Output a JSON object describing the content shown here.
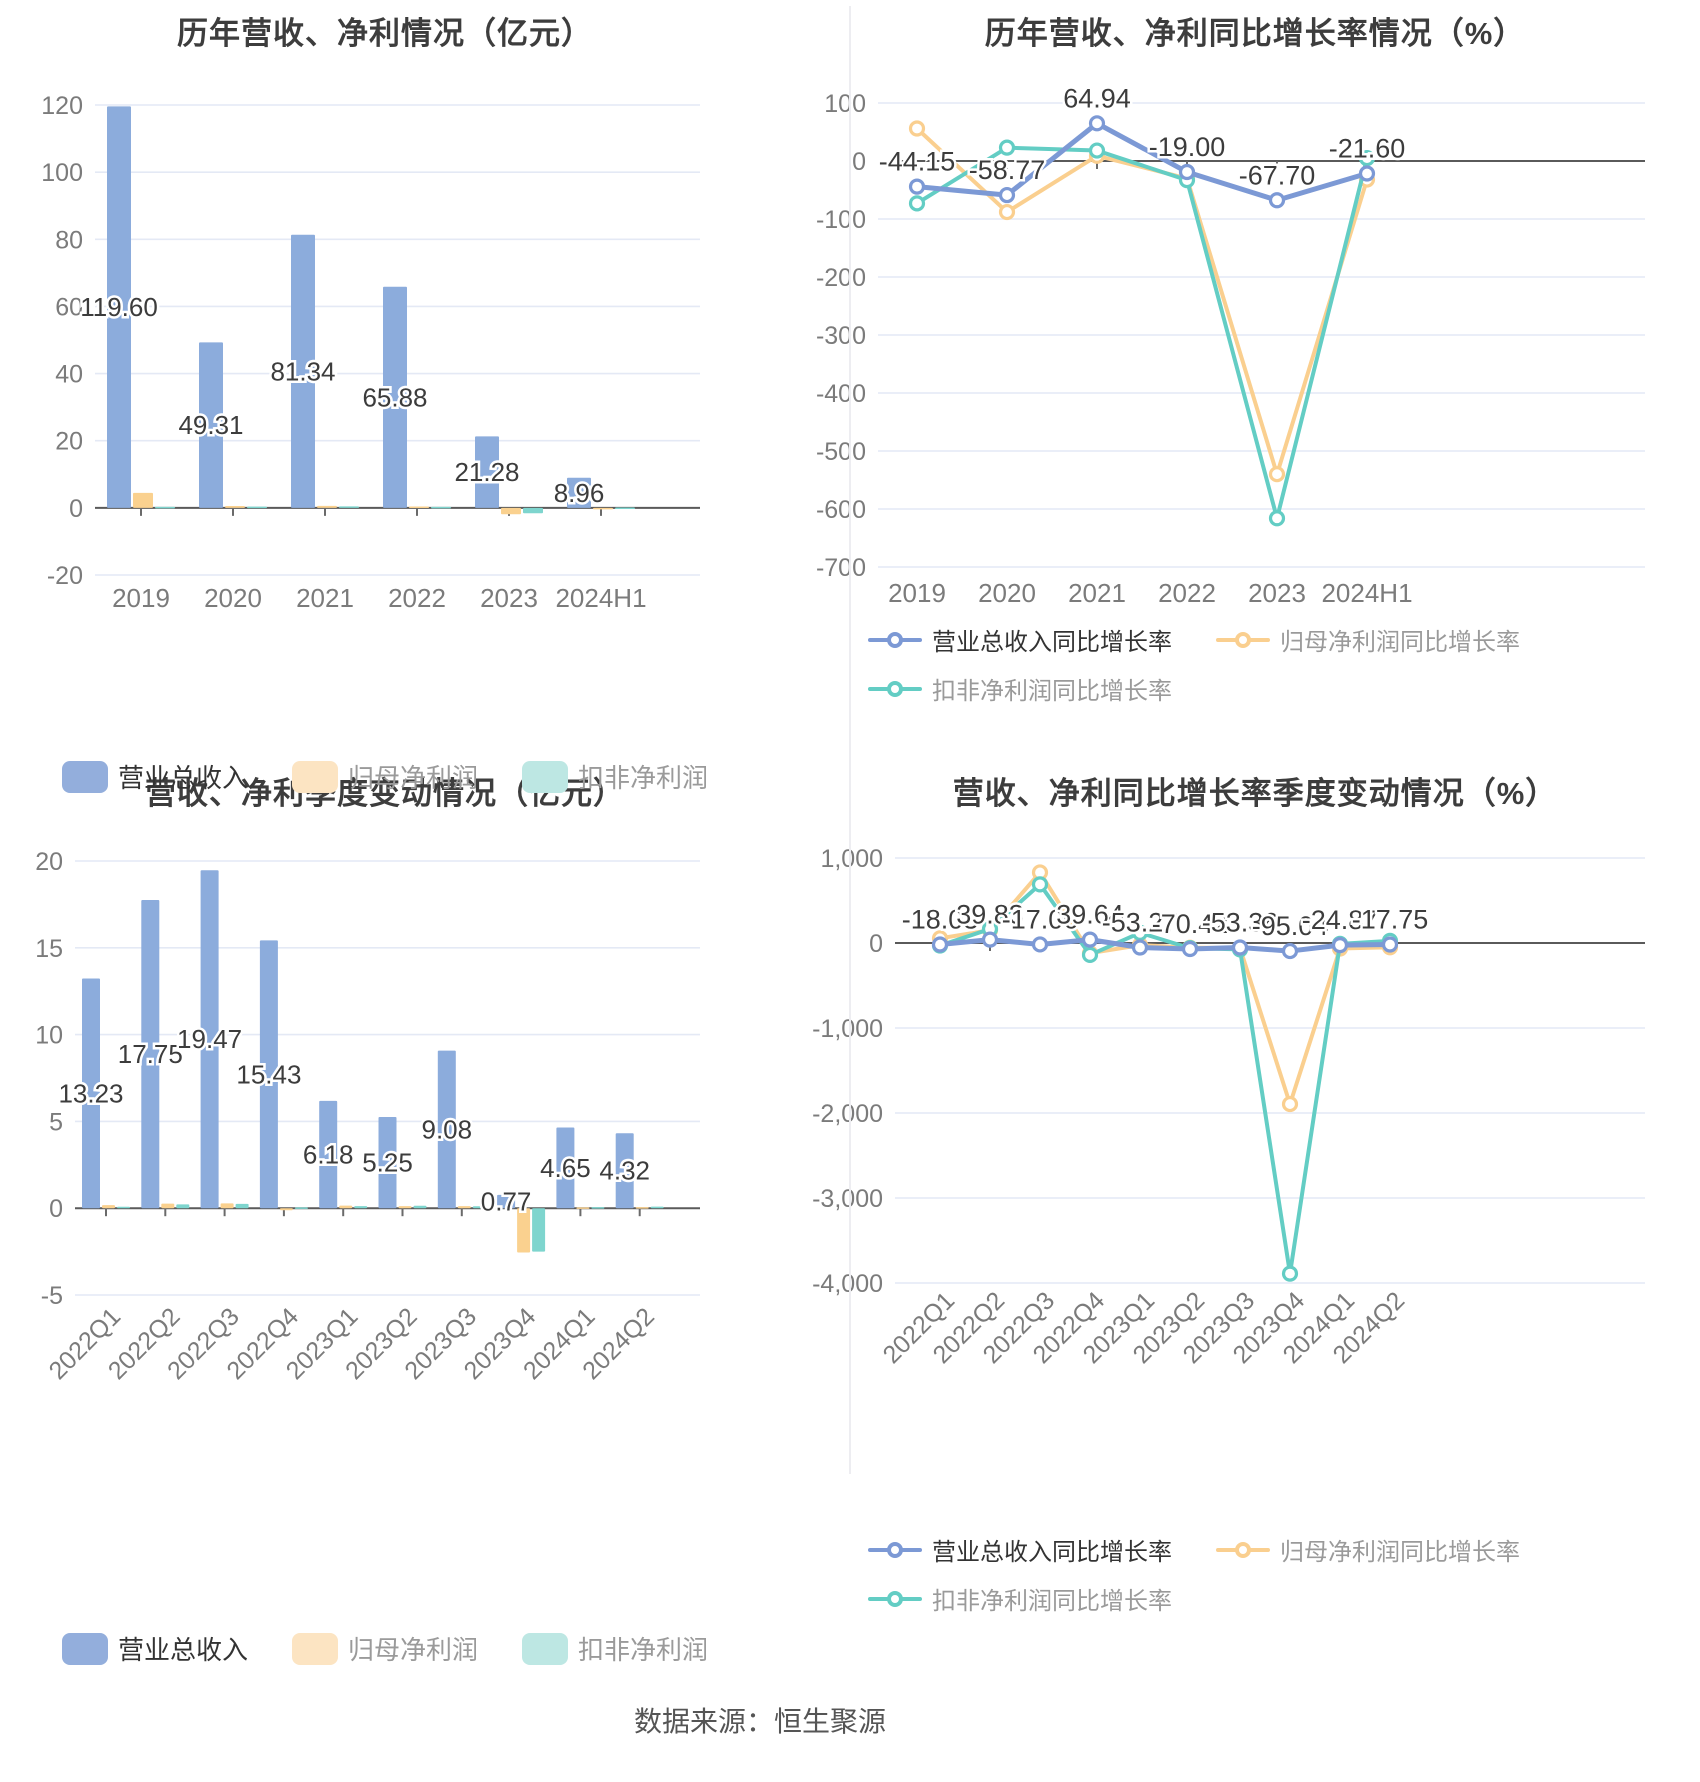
{
  "page": {
    "background": "#ffffff",
    "footer_source": "数据来源：恒生聚源"
  },
  "palette": {
    "bar_blue": "#8CACDC",
    "bar_orange": "#FAD18F",
    "bar_teal": "#7ED5CE",
    "line_blue": "#7C99D5",
    "line_orange": "#FACF8F",
    "line_teal": "#63CDC4",
    "legend_blue": "#93AEDC",
    "legend_orange": "#FCE4C2",
    "legend_teal": "#BDE7E3",
    "grid": "#E4E9F5",
    "zero_axis": "#5A5A5A",
    "tick_text": "#7B7B7B",
    "label_text": "#3C3C3C",
    "title_text": "#3D3D3D"
  },
  "chart_data": [
    {
      "type": "bar",
      "title": "历年营收、净利情况（亿元）",
      "categories": [
        "2019",
        "2020",
        "2021",
        "2022",
        "2023",
        "2024H1"
      ],
      "ylim": [
        -20,
        120
      ],
      "ystep": 20,
      "yticks": [
        120,
        100,
        80,
        60,
        40,
        20,
        0,
        -20
      ],
      "grid": true,
      "legend_position": "bottom",
      "series": [
        {
          "name": "营业总收入",
          "color": "bar_blue",
          "labeled": true,
          "values": [
            119.6,
            49.31,
            81.34,
            65.88,
            21.28,
            8.96
          ]
        },
        {
          "name": "归母净利润",
          "color": "bar_orange",
          "labeled": false,
          "values": [
            4.48,
            0.55,
            0.6,
            0.42,
            -1.9,
            -0.28
          ]
        },
        {
          "name": "扣非净利润",
          "color": "bar_teal",
          "labeled": false,
          "values": [
            0.3,
            0.37,
            0.44,
            0.29,
            -1.6,
            0.12
          ]
        }
      ]
    },
    {
      "type": "line",
      "title": "历年营收、净利同比增长率情况（%）",
      "categories": [
        "2019",
        "2020",
        "2021",
        "2022",
        "2023",
        "2024H1"
      ],
      "ylim": [
        -700,
        100
      ],
      "ystep": 100,
      "yticks": [
        100,
        0,
        -100,
        -200,
        -300,
        -400,
        -500,
        -600,
        -700
      ],
      "grid": true,
      "legend_position": "bottom",
      "series": [
        {
          "name": "营业总收入同比增长率",
          "color": "line_blue",
          "labeled": true,
          "values": [
            -44.15,
            -58.77,
            64.94,
            -19.0,
            -67.7,
            -21.6
          ]
        },
        {
          "name": "归母净利润同比增长率",
          "color": "line_orange",
          "labeled": false,
          "values": [
            56,
            -88,
            9,
            -30,
            -540,
            -32
          ]
        },
        {
          "name": "扣非净利润同比增长率",
          "color": "line_teal",
          "labeled": false,
          "values": [
            -73,
            23,
            18,
            -33,
            -616,
            5
          ]
        }
      ]
    },
    {
      "type": "bar",
      "title": "营收、净利季度变动情况（亿元）",
      "categories": [
        "2022Q1",
        "2022Q2",
        "2022Q3",
        "2022Q4",
        "2023Q1",
        "2023Q2",
        "2023Q3",
        "2023Q4",
        "2024Q1",
        "2024Q2"
      ],
      "ylim": [
        -5,
        20
      ],
      "ystep": 5,
      "yticks": [
        20,
        15,
        10,
        5,
        0,
        -5
      ],
      "grid": true,
      "legend_position": "bottom",
      "series": [
        {
          "name": "营业总收入",
          "color": "bar_blue",
          "labeled": true,
          "values": [
            13.23,
            17.75,
            19.47,
            15.43,
            6.18,
            5.25,
            9.08,
            0.77,
            4.65,
            4.32
          ]
        },
        {
          "name": "归母净利润",
          "color": "bar_orange",
          "labeled": false,
          "values": [
            0.18,
            0.26,
            0.28,
            -0.12,
            0.15,
            0.12,
            0.12,
            -2.55,
            0.05,
            0.06
          ]
        },
        {
          "name": "扣非净利润",
          "color": "bar_teal",
          "labeled": false,
          "values": [
            0.08,
            0.22,
            0.25,
            0.05,
            0.12,
            0.14,
            0.11,
            -2.5,
            0.06,
            0.09
          ]
        }
      ]
    },
    {
      "type": "line",
      "title": "营收、净利同比增长率季度变动情况（%）",
      "categories": [
        "2022Q1",
        "2022Q2",
        "2022Q3",
        "2022Q4",
        "2023Q1",
        "2023Q2",
        "2023Q3",
        "2023Q4",
        "2024Q1",
        "2024Q2"
      ],
      "ylim": [
        -4000,
        1000
      ],
      "ystep": 1000,
      "yticks": [
        1000,
        0,
        -1000,
        -2000,
        -3000,
        -4000
      ],
      "grid": true,
      "legend_position": "bottom",
      "series": [
        {
          "name": "营业总收入同比增长率",
          "color": "line_blue",
          "labeled": true,
          "values": [
            -18.03,
            39.83,
            -17.06,
            39.64,
            -53.27,
            -70.42,
            -53.36,
            -95.04,
            -24.87,
            -17.75
          ]
        },
        {
          "name": "归母净利润同比增长率",
          "color": "line_orange",
          "labeled": false,
          "values": [
            55,
            150,
            830,
            -120,
            -25,
            -55,
            -60,
            -1895,
            -65,
            -50
          ]
        },
        {
          "name": "扣非净利润同比增长率",
          "color": "line_teal",
          "labeled": false,
          "values": [
            -30,
            165,
            690,
            -140,
            120,
            -60,
            -75,
            -3890,
            -10,
            25
          ]
        }
      ]
    }
  ]
}
